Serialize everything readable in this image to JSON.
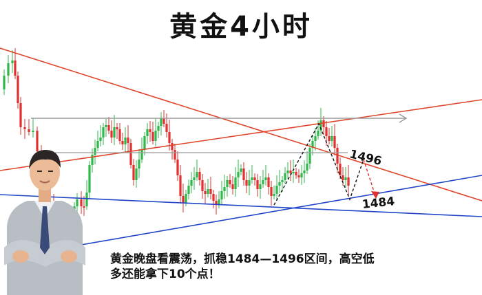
{
  "title": "黄金4小时",
  "colors": {
    "bull": "#2fb84a",
    "bear": "#e03131",
    "trend_red": "#e0452a",
    "trend_blue": "#2045c8",
    "range_gray": "#9a9a9a",
    "pattern_black": "#111111",
    "target_red": "#e03131"
  },
  "levels": {
    "upper": "1496",
    "lower": "1484"
  },
  "caption": {
    "line1": "黄金晚盘看震荡，抓稳1484—1496区间，高空低",
    "line2": "多还能拿下10个点！"
  },
  "chart_data": {
    "type": "candlestick",
    "title": "黄金4小时",
    "timeframe": "4H",
    "y_axis_shown": false,
    "grid": false,
    "annotated_levels": [
      1496,
      1484
    ],
    "range_low": 1484,
    "range_high": 1496
  },
  "presenter": {
    "icon": "presenter-figure-icon"
  }
}
